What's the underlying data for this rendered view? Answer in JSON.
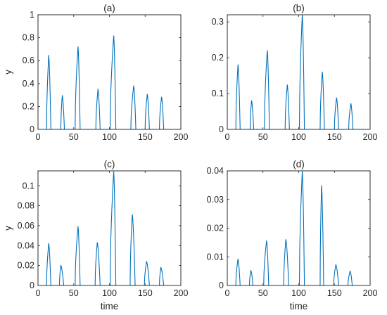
{
  "colors": {
    "series": "#0072BD",
    "axes": "#262626",
    "background": "#ffffff"
  },
  "chart_data": [
    {
      "type": "line",
      "title": "(a)",
      "xlabel": "",
      "ylabel": "y",
      "xlim": [
        0,
        200
      ],
      "ylim": [
        0,
        1
      ],
      "xticks": [
        0,
        50,
        100,
        150,
        200
      ],
      "yticks": [
        0,
        0.2,
        0.4,
        0.6,
        0.8,
        1
      ],
      "ytick_labels": [
        "0",
        "0.2",
        "0.4",
        "0.6",
        "0.8",
        "1"
      ],
      "grid": false,
      "pulses": [
        {
          "start": 12,
          "peak_t": 15,
          "peak": 0.645,
          "end": 18
        },
        {
          "start": 32,
          "peak_t": 34,
          "peak": 0.295,
          "end": 37
        },
        {
          "start": 52,
          "peak_t": 56,
          "peak": 0.72,
          "end": 59
        },
        {
          "start": 81,
          "peak_t": 84,
          "peak": 0.35,
          "end": 87
        },
        {
          "start": 101,
          "peak_t": 106,
          "peak": 0.815,
          "end": 109
        },
        {
          "start": 130,
          "peak_t": 134,
          "peak": 0.38,
          "end": 137
        },
        {
          "start": 150,
          "peak_t": 153,
          "peak": 0.305,
          "end": 156
        },
        {
          "start": 170,
          "peak_t": 173,
          "peak": 0.28,
          "end": 176
        }
      ]
    },
    {
      "type": "line",
      "title": "(b)",
      "xlabel": "",
      "ylabel": "",
      "xlim": [
        0,
        200
      ],
      "ylim": [
        0,
        0.32
      ],
      "xticks": [
        0,
        50,
        100,
        150,
        200
      ],
      "yticks": [
        0,
        0.1,
        0.2,
        0.3
      ],
      "ytick_labels": [
        "0",
        "0.1",
        "0.2",
        "0.3"
      ],
      "grid": false,
      "pulses": [
        {
          "start": 12,
          "peak_t": 15,
          "peak": 0.18,
          "end": 18
        },
        {
          "start": 32,
          "peak_t": 34,
          "peak": 0.08,
          "end": 37
        },
        {
          "start": 52,
          "peak_t": 56,
          "peak": 0.22,
          "end": 59
        },
        {
          "start": 81,
          "peak_t": 84,
          "peak": 0.124,
          "end": 87
        },
        {
          "start": 101,
          "peak_t": 105,
          "peak": 0.32,
          "end": 108
        },
        {
          "start": 130,
          "peak_t": 133,
          "peak": 0.16,
          "end": 136
        },
        {
          "start": 150,
          "peak_t": 153,
          "peak": 0.088,
          "end": 156
        },
        {
          "start": 170,
          "peak_t": 173,
          "peak": 0.072,
          "end": 176
        }
      ]
    },
    {
      "type": "line",
      "title": "(c)",
      "xlabel": "time",
      "ylabel": "y",
      "xlim": [
        0,
        200
      ],
      "ylim": [
        0,
        0.115
      ],
      "xticks": [
        0,
        50,
        100,
        150,
        200
      ],
      "yticks": [
        0,
        0.02,
        0.04,
        0.06,
        0.08,
        0.1
      ],
      "ytick_labels": [
        "0",
        "0.02",
        "0.04",
        "0.06",
        "0.08",
        "0.1"
      ],
      "grid": false,
      "pulses": [
        {
          "start": 12,
          "peak_t": 15,
          "peak": 0.042,
          "end": 18
        },
        {
          "start": 30,
          "peak_t": 32,
          "peak": 0.02,
          "end": 36
        },
        {
          "start": 52,
          "peak_t": 56,
          "peak": 0.059,
          "end": 59
        },
        {
          "start": 80,
          "peak_t": 83,
          "peak": 0.043,
          "end": 87
        },
        {
          "start": 101,
          "peak_t": 106,
          "peak": 0.114,
          "end": 109
        },
        {
          "start": 129,
          "peak_t": 132,
          "peak": 0.071,
          "end": 136
        },
        {
          "start": 149,
          "peak_t": 152,
          "peak": 0.024,
          "end": 156
        },
        {
          "start": 170,
          "peak_t": 172,
          "peak": 0.018,
          "end": 176
        }
      ]
    },
    {
      "type": "line",
      "title": "(d)",
      "xlabel": "time",
      "ylabel": "",
      "xlim": [
        0,
        200
      ],
      "ylim": [
        0,
        0.04
      ],
      "xticks": [
        0,
        50,
        100,
        150,
        200
      ],
      "yticks": [
        0,
        0.01,
        0.02,
        0.03,
        0.04
      ],
      "ytick_labels": [
        "0",
        "0.01",
        "0.02",
        "0.03",
        "0.04"
      ],
      "grid": false,
      "pulses": [
        {
          "start": 12,
          "peak_t": 15,
          "peak": 0.0092,
          "end": 18
        },
        {
          "start": 31,
          "peak_t": 33,
          "peak": 0.0052,
          "end": 36
        },
        {
          "start": 51,
          "peak_t": 55,
          "peak": 0.0155,
          "end": 58
        },
        {
          "start": 79,
          "peak_t": 82,
          "peak": 0.016,
          "end": 86
        },
        {
          "start": 101,
          "peak_t": 105,
          "peak": 0.0398,
          "end": 108
        },
        {
          "start": 130,
          "peak_t": 132,
          "peak": 0.0348,
          "end": 135
        },
        {
          "start": 149,
          "peak_t": 152,
          "peak": 0.0072,
          "end": 156
        },
        {
          "start": 169,
          "peak_t": 172,
          "peak": 0.005,
          "end": 175
        }
      ]
    }
  ]
}
